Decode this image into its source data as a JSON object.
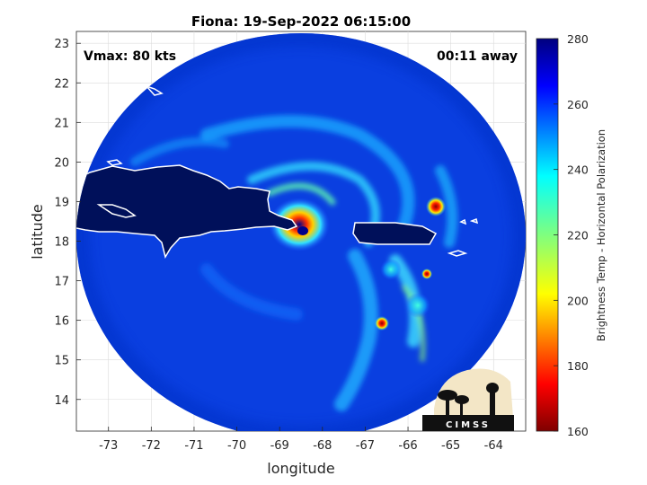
{
  "chart_data": {
    "type": "heatmap",
    "title": "Fiona: 19-Sep-2022 06:15:00",
    "xlabel": "longitude",
    "ylabel": "latitude",
    "xlim": [
      -73.75,
      -63.25
    ],
    "ylim": [
      13.2,
      23.3
    ],
    "xticks": [
      -73,
      -72,
      -71,
      -70,
      -69,
      -68,
      -67,
      -66,
      -65,
      -64
    ],
    "yticks": [
      14,
      15,
      16,
      17,
      18,
      19,
      20,
      21,
      22,
      23
    ],
    "grid": true,
    "colorbar": {
      "label": "Brightness Temp - Horizontal Polarization",
      "range": [
        160,
        280
      ],
      "ticks": [
        160,
        180,
        200,
        220,
        240,
        260,
        280
      ],
      "colormap": "jet"
    },
    "storm_center": {
      "lon": -68.4,
      "lat": 18.3
    },
    "annotations": {
      "vmax": "Vmax: 80 kts",
      "time_offset": "00:11 away"
    },
    "logo_text": "CIMSS"
  },
  "colors": {
    "background": "#0a3fe0",
    "coastline": "#ffffff"
  }
}
